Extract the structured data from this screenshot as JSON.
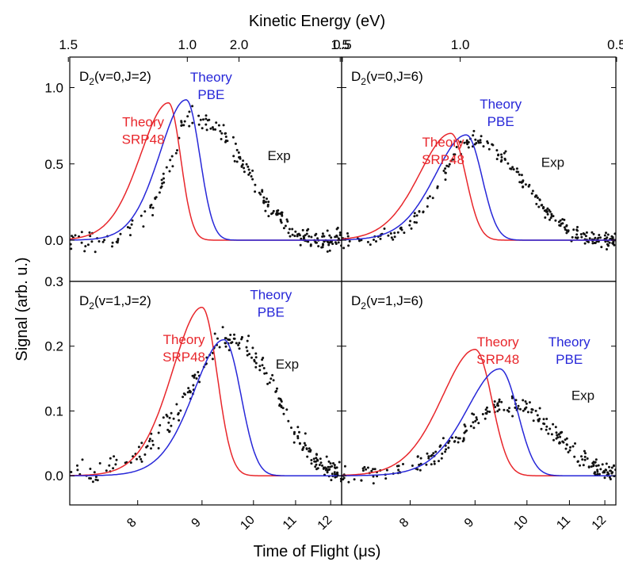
{
  "figure": {
    "top_axis_label": "Kinetic Energy (eV)",
    "bottom_axis_label": "Time of Flight (μs)",
    "y_axis_label": "Signal (arb. u.)",
    "colors": {
      "srp48": "#e8262b",
      "pbe": "#2727d8",
      "exp": "#111111",
      "frame": "#000000"
    }
  },
  "chart_data": [
    {
      "type": "line",
      "panel": "top-left",
      "title": "D2(v=0,J=2)",
      "title_parts": [
        "D",
        "2",
        "(v=0,J=2)"
      ],
      "x_scale": "reciprocal",
      "xlabel": "Time of Flight (μs)",
      "xlim": [
        7.16,
        12.35
      ],
      "x_ticks": [
        8,
        9,
        10,
        11,
        12
      ],
      "top_xlabel": "Kinetic Energy (eV)",
      "top_ticks": [
        "2.0",
        "1.5",
        "1.0",
        "0.5"
      ],
      "top_tick_values": [
        2.0,
        1.5,
        1.0,
        0.5
      ],
      "ylabel": "Signal (arb. u.)",
      "ylim": [
        -0.27,
        1.2
      ],
      "y_ticks": [
        "0.0",
        "0.5",
        "1.0"
      ],
      "y_tick_values": [
        0.0,
        0.5,
        1.0
      ],
      "series": [
        {
          "name": "Theory SRP48",
          "label_lines": [
            "Theory",
            "SRP48"
          ],
          "color": "#e8262b",
          "peak_x": 8.45,
          "peak_y": 0.9,
          "width_left": 0.42,
          "width_right": 0.19
        },
        {
          "name": "Theory PBE",
          "label_lines": [
            "Theory",
            "PBE"
          ],
          "color": "#2727d8",
          "peak_x": 8.73,
          "peak_y": 0.92,
          "width_left": 0.42,
          "width_right": 0.23
        },
        {
          "name": "Exp",
          "label_lines": [
            "Exp"
          ],
          "color": "#111111",
          "peak_x": 8.85,
          "peak_y": 0.8,
          "width_left": 0.4,
          "width_right": 0.95,
          "noise": 0.07
        }
      ]
    },
    {
      "type": "line",
      "panel": "top-right",
      "title": "D2(v=0,J=6)",
      "title_parts": [
        "D",
        "2",
        "(v=0,J=6)"
      ],
      "x_scale": "reciprocal",
      "xlabel": "Time of Flight (μs)",
      "xlim": [
        7.16,
        12.35
      ],
      "x_ticks": [
        8,
        9,
        10,
        11,
        12
      ],
      "top_xlabel": "Kinetic Energy (eV)",
      "top_ticks": [
        "2.0",
        "1.5",
        "1.0",
        "0.5"
      ],
      "top_tick_values": [
        2.0,
        1.5,
        1.0,
        0.5
      ],
      "ylabel": "Signal (arb. u.)",
      "ylim": [
        -0.27,
        1.2
      ],
      "y_ticks": [],
      "y_tick_values": [
        0.0,
        0.5,
        1.0
      ],
      "series": [
        {
          "name": "Theory SRP48",
          "label_lines": [
            "Theory",
            "SRP48"
          ],
          "color": "#e8262b",
          "peak_x": 8.6,
          "peak_y": 0.7,
          "width_left": 0.48,
          "width_right": 0.24
        },
        {
          "name": "Theory PBE",
          "label_lines": [
            "Theory",
            "PBE"
          ],
          "color": "#2727d8",
          "peak_x": 8.85,
          "peak_y": 0.69,
          "width_left": 0.5,
          "width_right": 0.27
        },
        {
          "name": "Exp",
          "label_lines": [
            "Exp"
          ],
          "color": "#111111",
          "peak_x": 8.95,
          "peak_y": 0.65,
          "width_left": 0.5,
          "width_right": 0.95,
          "noise": 0.05
        }
      ]
    },
    {
      "type": "line",
      "panel": "bottom-left",
      "title": "D2(v=1,J=2)",
      "title_parts": [
        "D",
        "2",
        "(v=1,J=2)"
      ],
      "x_scale": "reciprocal",
      "xlabel": "Time of Flight (μs)",
      "xlim": [
        7.16,
        12.35
      ],
      "x_ticks": [
        8,
        9,
        10,
        11,
        12
      ],
      "ylabel": "Signal (arb. u.)",
      "ylim": [
        -0.045,
        0.3
      ],
      "y_ticks": [
        "0.0",
        "0.1",
        "0.2",
        "0.3"
      ],
      "y_tick_values": [
        0.0,
        0.1,
        0.2,
        0.3
      ],
      "series": [
        {
          "name": "Theory SRP48",
          "label_lines": [
            "Theory",
            "SRP48"
          ],
          "color": "#e8262b",
          "peak_x": 9.0,
          "peak_y": 0.26,
          "width_left": 0.5,
          "width_right": 0.27
        },
        {
          "name": "Theory PBE",
          "label_lines": [
            "Theory",
            "PBE"
          ],
          "color": "#2727d8",
          "peak_x": 9.4,
          "peak_y": 0.21,
          "width_left": 0.55,
          "width_right": 0.33
        },
        {
          "name": "Exp",
          "label_lines": [
            "Exp"
          ],
          "color": "#111111",
          "peak_x": 9.5,
          "peak_y": 0.21,
          "width_left": 0.75,
          "width_right": 1.0,
          "noise": 0.018
        }
      ]
    },
    {
      "type": "line",
      "panel": "bottom-right",
      "title": "D2(v=1,J=6)",
      "title_parts": [
        "D",
        "2",
        "(v=1,J=6)"
      ],
      "x_scale": "reciprocal",
      "xlabel": "Time of Flight (μs)",
      "xlim": [
        7.16,
        12.35
      ],
      "x_ticks": [
        8,
        9,
        10,
        11,
        12
      ],
      "ylabel": "Signal (arb. u.)",
      "ylim": [
        -0.045,
        0.3
      ],
      "y_ticks": [],
      "y_tick_values": [
        0.0,
        0.1,
        0.2,
        0.3
      ],
      "series": [
        {
          "name": "Theory SRP48",
          "label_lines": [
            "Theory",
            "SRP48"
          ],
          "color": "#e8262b",
          "peak_x": 9.0,
          "peak_y": 0.195,
          "width_left": 0.55,
          "width_right": 0.3
        },
        {
          "name": "Theory PBE",
          "label_lines": [
            "Theory",
            "PBE"
          ],
          "color": "#2727d8",
          "peak_x": 9.45,
          "peak_y": 0.165,
          "width_left": 0.6,
          "width_right": 0.35
        },
        {
          "name": "Exp",
          "label_lines": [
            "Exp"
          ],
          "color": "#111111",
          "peak_x": 9.6,
          "peak_y": 0.11,
          "width_left": 0.8,
          "width_right": 1.05,
          "noise": 0.015
        }
      ]
    }
  ]
}
